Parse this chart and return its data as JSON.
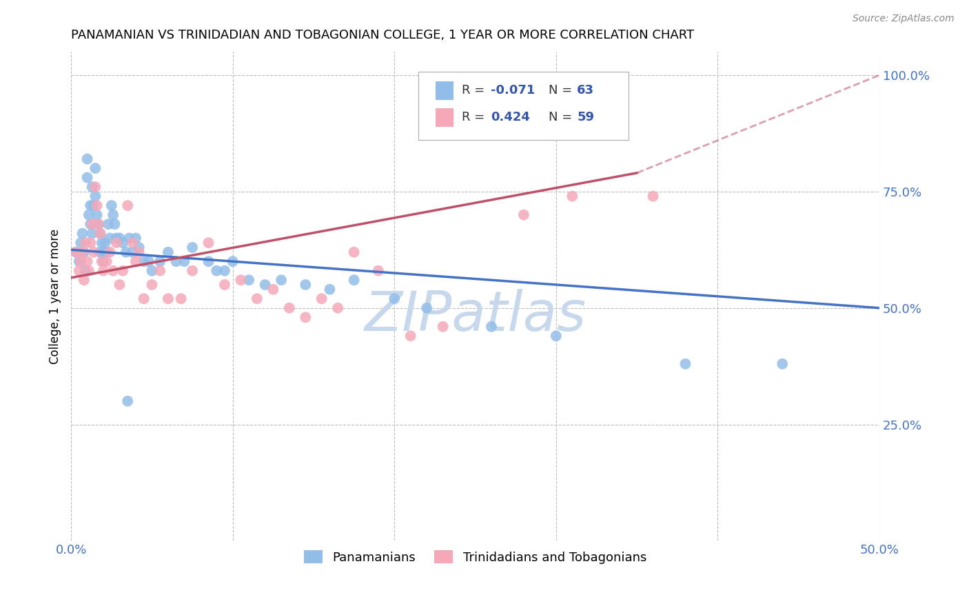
{
  "title": "PANAMANIAN VS TRINIDADIAN AND TOBAGONIAN COLLEGE, 1 YEAR OR MORE CORRELATION CHART",
  "source_text": "Source: ZipAtlas.com",
  "ylabel": "College, 1 year or more",
  "xlim": [
    0.0,
    0.5
  ],
  "ylim": [
    0.0,
    1.05
  ],
  "xtick_pos": [
    0.0,
    0.1,
    0.2,
    0.3,
    0.4,
    0.5
  ],
  "xticklabels": [
    "0.0%",
    "",
    "",
    "",
    "",
    "50.0%"
  ],
  "yticks_right": [
    0.25,
    0.5,
    0.75,
    1.0
  ],
  "yticklabels_right": [
    "25.0%",
    "50.0%",
    "75.0%",
    "100.0%"
  ],
  "blue_color": "#92BDE8",
  "pink_color": "#F4A8B8",
  "trend_blue_color": "#4472C4",
  "trend_pink_color": "#C0506A",
  "watermark": "ZIPatlas",
  "watermark_color": "#C8D8EC",
  "label_blue": "Panamanians",
  "label_pink": "Trinidadians and Tobagonians",
  "blue_trend": [
    0.0,
    0.5,
    0.625,
    0.5
  ],
  "pink_solid_trend": [
    0.0,
    0.35,
    0.565,
    0.79
  ],
  "pink_dashed_trend": [
    0.35,
    0.5,
    0.79,
    1.0
  ],
  "blue_x": [
    0.003,
    0.005,
    0.006,
    0.007,
    0.008,
    0.009,
    0.01,
    0.01,
    0.011,
    0.012,
    0.012,
    0.013,
    0.013,
    0.014,
    0.015,
    0.015,
    0.016,
    0.017,
    0.018,
    0.018,
    0.019,
    0.02,
    0.02,
    0.021,
    0.022,
    0.023,
    0.024,
    0.025,
    0.026,
    0.027,
    0.028,
    0.03,
    0.032,
    0.034,
    0.036,
    0.038,
    0.04,
    0.042,
    0.045,
    0.048,
    0.05,
    0.055,
    0.06,
    0.065,
    0.07,
    0.075,
    0.085,
    0.09,
    0.095,
    0.1,
    0.11,
    0.12,
    0.13,
    0.145,
    0.16,
    0.175,
    0.2,
    0.22,
    0.26,
    0.3,
    0.38,
    0.44,
    0.035
  ],
  "blue_y": [
    0.62,
    0.6,
    0.64,
    0.66,
    0.62,
    0.58,
    0.78,
    0.82,
    0.7,
    0.68,
    0.72,
    0.76,
    0.66,
    0.72,
    0.8,
    0.74,
    0.7,
    0.68,
    0.66,
    0.62,
    0.64,
    0.62,
    0.6,
    0.64,
    0.62,
    0.68,
    0.65,
    0.72,
    0.7,
    0.68,
    0.65,
    0.65,
    0.64,
    0.62,
    0.65,
    0.62,
    0.65,
    0.63,
    0.6,
    0.6,
    0.58,
    0.6,
    0.62,
    0.6,
    0.6,
    0.63,
    0.6,
    0.58,
    0.58,
    0.6,
    0.56,
    0.55,
    0.56,
    0.55,
    0.54,
    0.56,
    0.52,
    0.5,
    0.46,
    0.44,
    0.38,
    0.38,
    0.3
  ],
  "pink_x": [
    0.003,
    0.005,
    0.006,
    0.007,
    0.008,
    0.009,
    0.01,
    0.011,
    0.012,
    0.013,
    0.014,
    0.015,
    0.016,
    0.017,
    0.018,
    0.019,
    0.02,
    0.022,
    0.024,
    0.026,
    0.028,
    0.03,
    0.032,
    0.035,
    0.038,
    0.04,
    0.042,
    0.045,
    0.05,
    0.055,
    0.06,
    0.068,
    0.075,
    0.085,
    0.095,
    0.105,
    0.115,
    0.125,
    0.135,
    0.145,
    0.155,
    0.165,
    0.175,
    0.19,
    0.21,
    0.23,
    0.28,
    0.31,
    0.36
  ],
  "pink_y": [
    0.62,
    0.58,
    0.6,
    0.62,
    0.56,
    0.64,
    0.6,
    0.58,
    0.64,
    0.68,
    0.62,
    0.76,
    0.72,
    0.68,
    0.66,
    0.6,
    0.58,
    0.6,
    0.62,
    0.58,
    0.64,
    0.55,
    0.58,
    0.72,
    0.64,
    0.6,
    0.62,
    0.52,
    0.55,
    0.58,
    0.52,
    0.52,
    0.58,
    0.64,
    0.55,
    0.56,
    0.52,
    0.54,
    0.5,
    0.48,
    0.52,
    0.5,
    0.62,
    0.58,
    0.44,
    0.46,
    0.7,
    0.74,
    0.74
  ]
}
